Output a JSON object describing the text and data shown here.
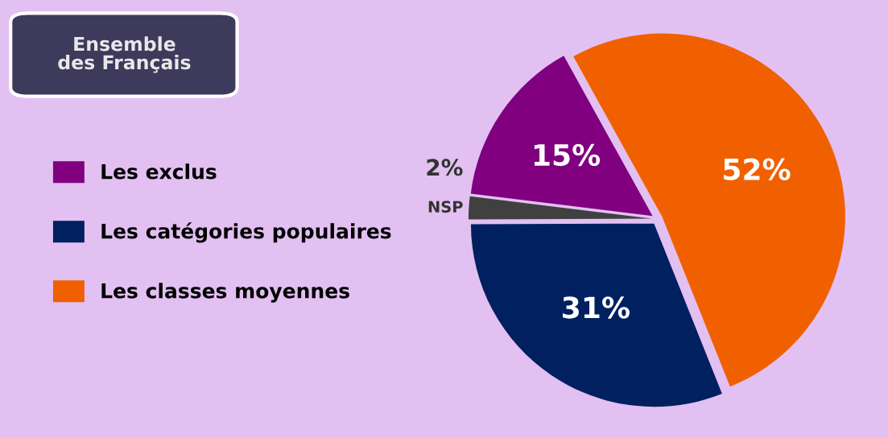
{
  "chart_data": {
    "type": "pie",
    "title": "Ensemble\ndes Français",
    "categories": [
      "Les exclus",
      "NSP",
      "Les catégories populaires",
      "Les classes moyennes"
    ],
    "values": [
      15,
      2,
      31,
      52
    ],
    "value_labels": [
      "15%",
      "2%",
      "31%",
      "52%"
    ],
    "colors": [
      "#800080",
      "#404040",
      "#002060",
      "#f06000"
    ],
    "legend": "left"
  }
}
